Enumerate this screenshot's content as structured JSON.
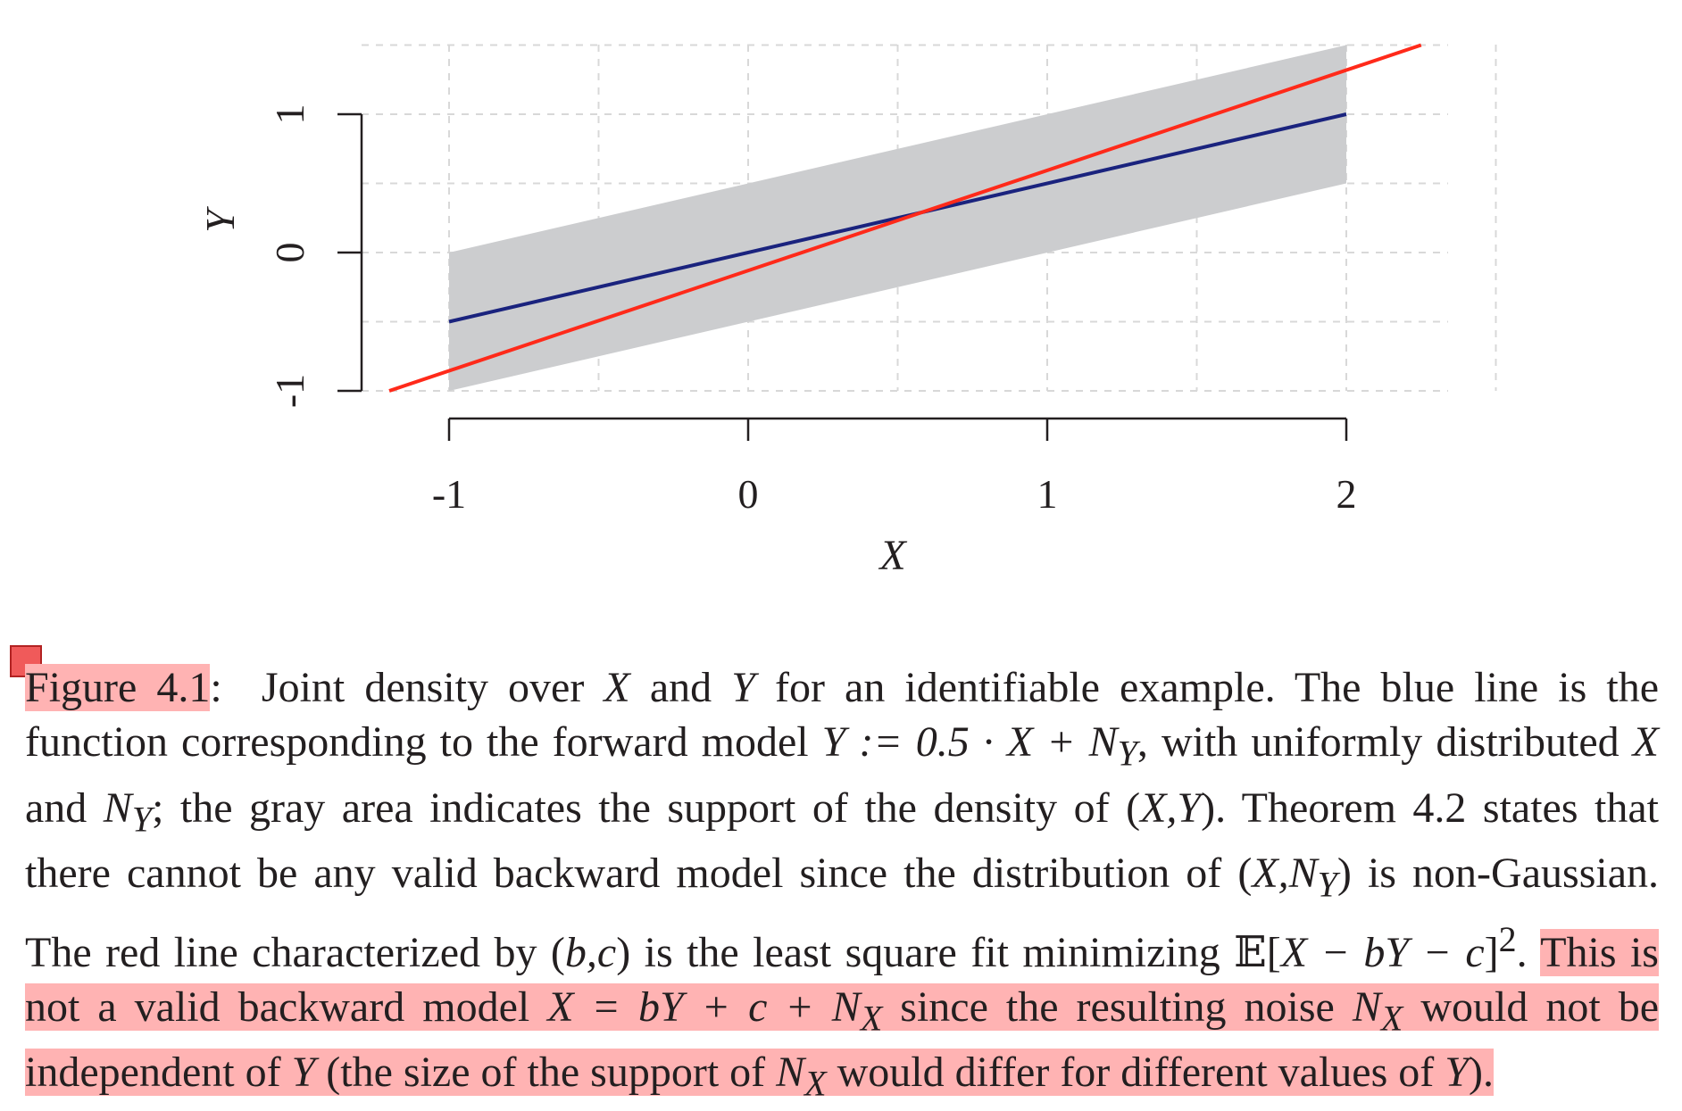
{
  "chart_data": {
    "type": "line",
    "title": "",
    "xlabel": "X",
    "ylabel": "Y",
    "xlim": [
      -1,
      2
    ],
    "ylim": [
      -1,
      1
    ],
    "x_ticks": [
      "-1",
      "0",
      "1",
      "2"
    ],
    "y_ticks": [
      "-1",
      "0",
      "1"
    ],
    "grid": true,
    "support_band": {
      "x": [
        -1,
        2
      ],
      "lower": [
        -1.0,
        0.5
      ],
      "upper": [
        0.0,
        1.5
      ],
      "color": "#cccdcf"
    },
    "series": [
      {
        "x": [
          -1,
          2
        ],
        "y": [
          -0.5,
          1.0
        ],
        "color": "#1a237e"
      },
      {
        "x": [
          -1.2,
          2.25
        ],
        "y": [
          -1.0,
          1.5
        ],
        "color": "#ff2a1a"
      }
    ]
  },
  "caption": {
    "figure_label": "Figure 4.1",
    "colon": ":",
    "p1": "Joint density over ",
    "v_X1": "X",
    "p2": " and ",
    "v_Y1": "Y",
    "p3": " for an identifiable example. The blue line is the function corresponding to the forward model ",
    "eq_forward": "Y := 0.5 · X + N",
    "eq_forward_sub": "Y",
    "p4": ", with uniformly distributed ",
    "v_X2": "X",
    "p5": " and ",
    "v_N1": "N",
    "v_N1_sub": "Y",
    "p6": "; the gray area indicates the support of the density of (",
    "v_XY": "X,Y",
    "p7": "). Theorem 4.2 states that there cannot be any valid backward model since the distribution of (",
    "v_XN": "X,N",
    "v_XN_sub": "Y",
    "p8": ") is non-Gaussian. The red line characterized by (",
    "v_bc": "b,c",
    "p9": ") is the least square fit minimizing 𝔼[",
    "v_lsq": "X − bY − c",
    "p10": "]",
    "p10_sup": "2",
    "p11": ". ",
    "hl_1": "This is not a valid backward model ",
    "hl_eq": "X = bY + c + N",
    "hl_eq_sub": "X",
    "hl_2": " since the resulting noise ",
    "hl_N2": "N",
    "hl_N2_sub": "X",
    "hl_3": " would not be independent of ",
    "hl_Y": "Y",
    "hl_4": " (the size of the support of ",
    "hl_N3": "N",
    "hl_N3_sub": "X",
    "hl_5": " would differ for different values of ",
    "hl_Y2": "Y",
    "hl_6": ")."
  }
}
